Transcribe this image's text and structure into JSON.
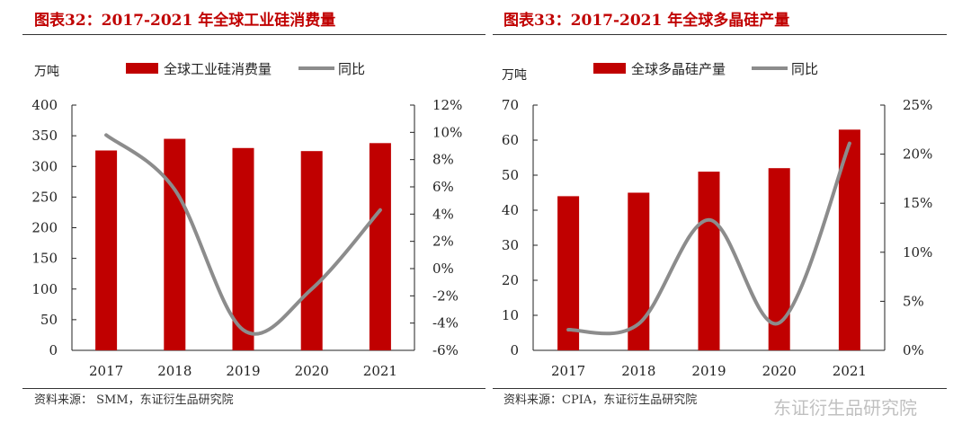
{
  "colors": {
    "bar": "#c00000",
    "line": "#8c8c8c"
  },
  "watermark": "东证衍生品研究院",
  "chart_data": [
    {
      "type": "bar+line",
      "title": "图表32：2017-2021 年全球工业硅消费量",
      "source": "资料来源： SMM，东证衍生品研究院",
      "ylabel": "万吨",
      "categories": [
        "2017",
        "2018",
        "2019",
        "2020",
        "2021"
      ],
      "series": [
        {
          "name": "全球工业硅消费量",
          "type": "bar",
          "axis": "left",
          "values": [
            326,
            345,
            330,
            325,
            338
          ]
        },
        {
          "name": "同比",
          "type": "line",
          "axis": "right",
          "values": [
            9.8,
            5.8,
            -4.5,
            -1.5,
            4.3
          ]
        }
      ],
      "ylim": [
        0,
        400
      ],
      "yticks": [
        "0",
        "50",
        "100",
        "150",
        "200",
        "250",
        "300",
        "350",
        "400"
      ],
      "y2lim": [
        -6,
        12
      ],
      "y2ticks": [
        "-6%",
        "-4%",
        "-2%",
        "0%",
        "2%",
        "4%",
        "6%",
        "8%",
        "10%",
        "12%"
      ],
      "legend": "top"
    },
    {
      "type": "bar+line",
      "title": "图表33：2017-2021 年全球多晶硅产量",
      "source": "资料来源：CPIA，东证衍生品研究院",
      "ylabel": "万吨",
      "categories": [
        "2017",
        "2018",
        "2019",
        "2020",
        "2021"
      ],
      "series": [
        {
          "name": "全球多晶硅产量",
          "type": "bar",
          "axis": "left",
          "values": [
            44,
            45,
            51,
            52,
            63
          ]
        },
        {
          "name": "同比",
          "type": "line",
          "axis": "right",
          "values": [
            2.1,
            2.7,
            13.3,
            2.8,
            21.1
          ]
        }
      ],
      "ylim": [
        0,
        70
      ],
      "yticks": [
        "0",
        "10",
        "20",
        "30",
        "40",
        "50",
        "60",
        "70"
      ],
      "y2lim": [
        0,
        25
      ],
      "y2ticks": [
        "0%",
        "5%",
        "10%",
        "15%",
        "20%",
        "25%"
      ],
      "legend": "top"
    }
  ]
}
